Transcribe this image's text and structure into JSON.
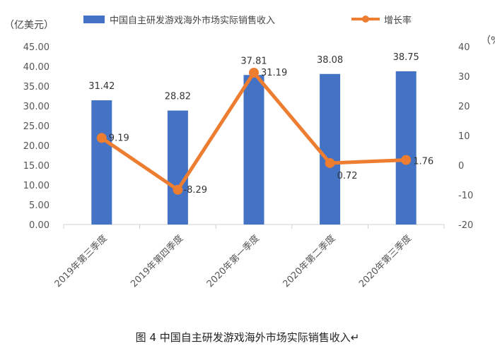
{
  "chart_data": {
    "type": "bar+line",
    "categories": [
      "2019年第三季度",
      "2019年第四季度",
      "2020年第一季度",
      "2020年第二季度",
      "2020年第三季度"
    ],
    "series": [
      {
        "name": "中国自主研发游戏海外市场实际销售收入",
        "type": "bar",
        "axis": "left",
        "values": [
          31.42,
          28.82,
          37.81,
          38.08,
          38.75
        ]
      },
      {
        "name": "增长率",
        "type": "line",
        "axis": "right",
        "values": [
          9.19,
          -8.29,
          31.19,
          0.72,
          1.76
        ]
      }
    ],
    "y_left": {
      "label": "（亿美元）",
      "range": [
        0,
        45
      ],
      "ticks": [
        "0.00",
        "5.00",
        "10.00",
        "15.00",
        "20.00",
        "25.00",
        "30.00",
        "35.00",
        "40.00",
        "45.00"
      ]
    },
    "y_right": {
      "label": "（%）",
      "range": [
        -20,
        40
      ],
      "ticks": [
        "-20",
        "-10",
        "0",
        "10",
        "20",
        "30",
        "40"
      ]
    },
    "bar_labels": [
      "31.42",
      "28.82",
      "37.81",
      "38.08",
      "38.75"
    ],
    "line_labels": [
      "9.19",
      "-8.29",
      "31.19",
      "0.72",
      "1.76"
    ],
    "legend_position": "top",
    "grid": false,
    "colors": {
      "bar": "#4472C4",
      "line": "#ED7D31"
    }
  },
  "caption": "图 4  中国自主研发游戏海外市场实际销售收入↵"
}
